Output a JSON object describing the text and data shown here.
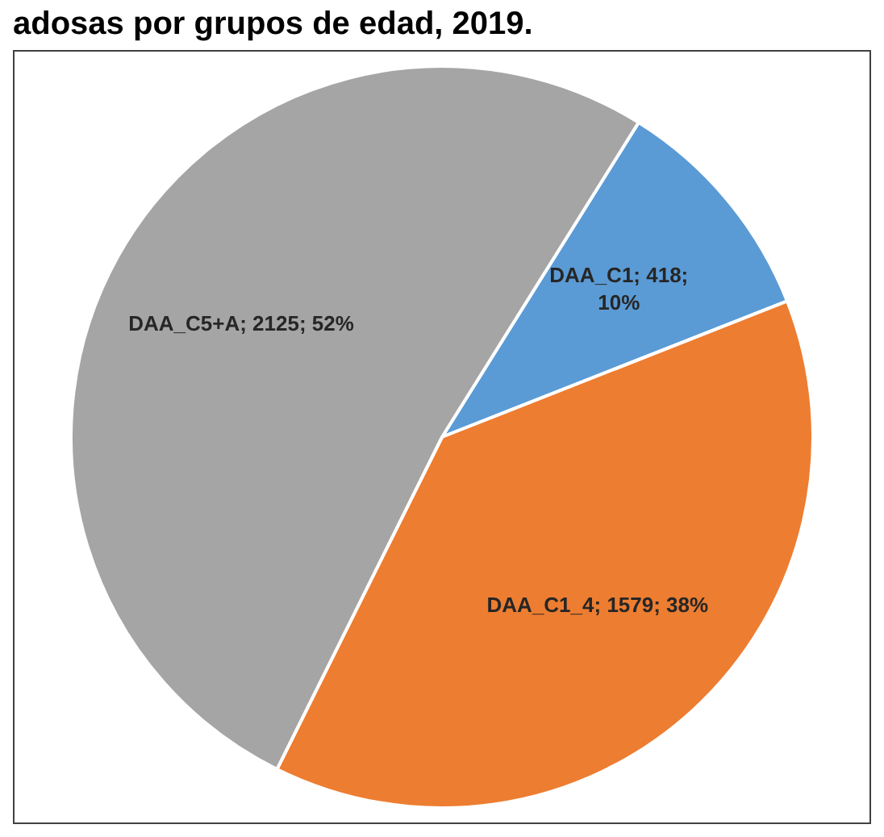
{
  "chart_data": {
    "type": "pie",
    "title": "adosas por grupos de edad, 2019.",
    "categories": [
      "DAA_C1",
      "DAA_C1_4",
      "DAA_C5+A"
    ],
    "values": [
      418,
      1579,
      2125
    ],
    "colors": [
      "#5b9bd5",
      "#ed7d31",
      "#a5a5a5"
    ],
    "value_labels": [
      "418; 10%",
      "1579; 38%",
      "2125; 52%"
    ],
    "legend": false
  }
}
